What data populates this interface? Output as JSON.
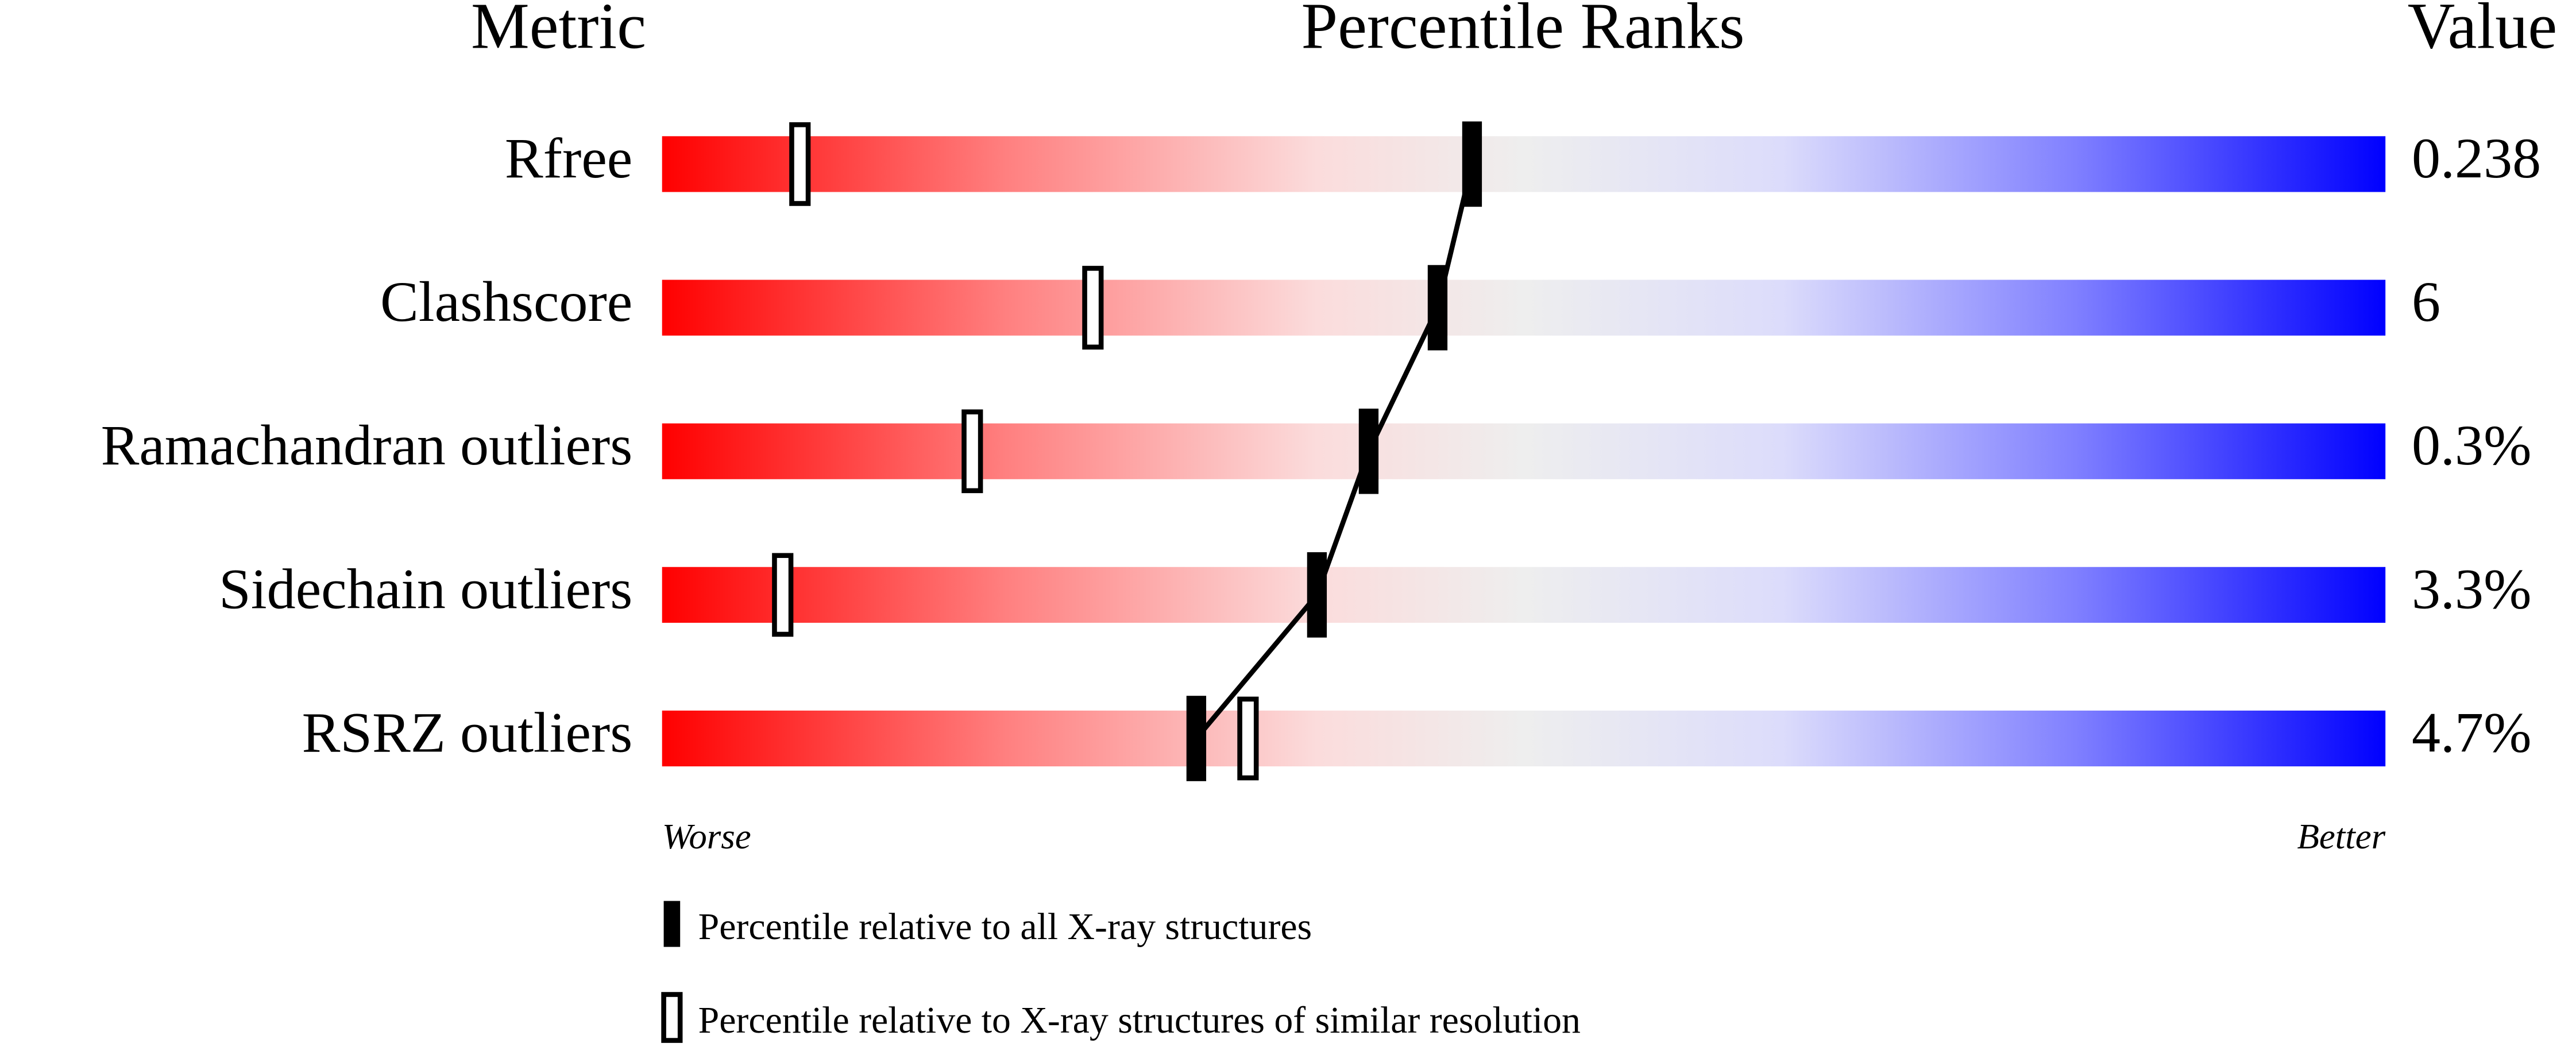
{
  "chart_data": {
    "type": "percentile-slider",
    "headers": [
      "Metric",
      "Percentile Ranks",
      "Value"
    ],
    "categories": [
      "Rfree",
      "Clashscore",
      "Ramachandran outliers",
      "Sidechain outliers",
      "RSRZ outliers"
    ],
    "printed_values": [
      "0.238",
      "6",
      "0.3%",
      "3.3%",
      "4.7%"
    ],
    "series": [
      {
        "name": "Percentile relative to all X-ray structures",
        "color": "#000000",
        "values": [
          47,
          45,
          41,
          38,
          31
        ]
      },
      {
        "name": "Percentile relative to X-ray structures of similar resolution",
        "color": "#ffffff",
        "values": [
          8,
          25,
          18,
          7,
          34
        ]
      }
    ],
    "xlim": [
      0,
      100
    ],
    "x_axis_labels": [
      "Worse",
      "Better"
    ]
  }
}
